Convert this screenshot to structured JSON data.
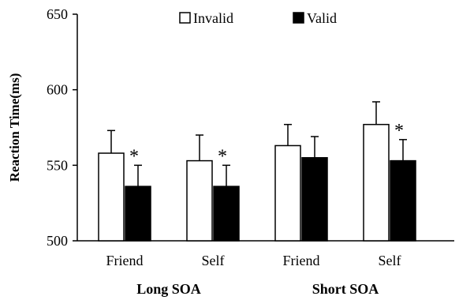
{
  "chart_data": {
    "type": "bar",
    "title": "",
    "ylabel": "Reaction Time(ms)",
    "xlabel": "",
    "ylim": [
      500,
      650
    ],
    "yticks": [
      500,
      550,
      600,
      650
    ],
    "groups": [
      {
        "label": "Long SOA",
        "categories": [
          "Friend",
          "Self"
        ]
      },
      {
        "label": "Short SOA",
        "categories": [
          "Friend",
          "Self"
        ]
      }
    ],
    "categories": [
      "Friend",
      "Self",
      "Friend",
      "Self"
    ],
    "series": [
      {
        "name": "Invalid",
        "fill": "#ffffff",
        "values": [
          558,
          553,
          563,
          577
        ],
        "errors": [
          15,
          17,
          14,
          15
        ]
      },
      {
        "name": "Valid",
        "fill": "#000000",
        "values": [
          536,
          536,
          555,
          553
        ],
        "errors": [
          14,
          14,
          14,
          14
        ]
      }
    ],
    "annotations": [
      {
        "category_index": 0,
        "text": "*"
      },
      {
        "category_index": 1,
        "text": "*"
      },
      {
        "category_index": 3,
        "text": "*"
      }
    ],
    "legend_position": "top",
    "grid": false
  }
}
